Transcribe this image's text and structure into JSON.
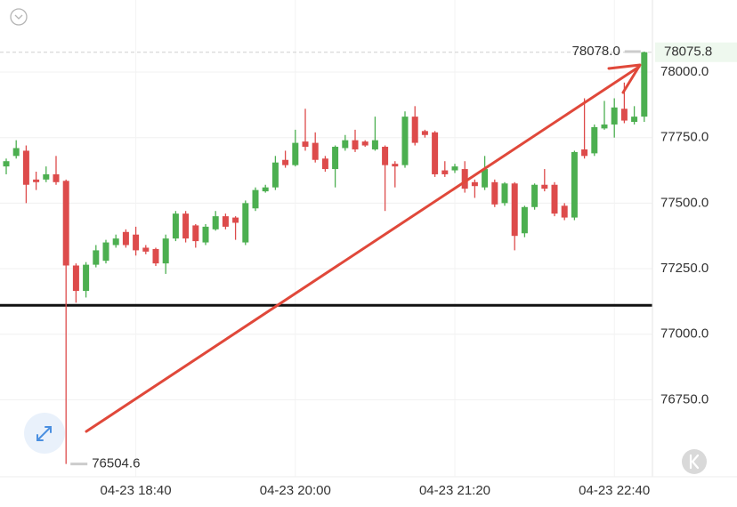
{
  "chart_data": {
    "type": "candlestick",
    "categories": [
      null,
      null,
      null,
      null,
      null,
      null,
      null,
      null,
      null,
      null,
      null,
      null,
      null,
      "04-23 18:40",
      null,
      null,
      null,
      null,
      null,
      null,
      null,
      null,
      null,
      null,
      null,
      null,
      null,
      null,
      null,
      "04-23 20:00",
      null,
      null,
      null,
      null,
      null,
      null,
      null,
      null,
      null,
      null,
      null,
      null,
      null,
      null,
      null,
      "04-23 21:20",
      null,
      null,
      null,
      null,
      null,
      null,
      null,
      null,
      null,
      null,
      null,
      null,
      null,
      null,
      null,
      "04-23 22:40",
      null,
      null,
      null
    ],
    "open": [
      77640,
      77680,
      77700,
      77590,
      77590,
      77610,
      77585,
      77262,
      77165,
      77265,
      77280,
      77340,
      77390,
      77380,
      77330,
      77325,
      77270,
      77365,
      77460,
      77415,
      77350,
      77400,
      77450,
      77445,
      77350,
      77480,
      77545,
      77560,
      77665,
      77645,
      77735,
      77730,
      77670,
      77630,
      77710,
      77740,
      77735,
      77705,
      77715,
      77650,
      77645,
      77830,
      77775,
      77770,
      77625,
      77625,
      77630,
      77580,
      77560,
      77580,
      77500,
      77575,
      77385,
      77485,
      77570,
      77570,
      77490,
      77445,
      77705,
      77690,
      77785,
      77800,
      77860,
      77810,
      77830
    ],
    "close": [
      77660,
      77710,
      77570,
      77580,
      77610,
      77580,
      77262,
      77165,
      77265,
      77320,
      77350,
      77365,
      77340,
      77320,
      77315,
      77270,
      77365,
      77460,
      77365,
      77355,
      77410,
      77450,
      77410,
      77425,
      77500,
      77550,
      77560,
      77655,
      77645,
      77730,
      77715,
      77665,
      77630,
      77715,
      77740,
      77705,
      77720,
      77740,
      77645,
      77640,
      77830,
      77730,
      77760,
      77610,
      77610,
      77640,
      77555,
      77565,
      77630,
      77495,
      77575,
      77375,
      77485,
      77570,
      77555,
      77460,
      77445,
      77695,
      77680,
      77790,
      77800,
      77865,
      77815,
      77830,
      78075.8
    ],
    "high": [
      77670,
      77740,
      77720,
      77620,
      77640,
      77680,
      77590,
      77270,
      77275,
      77340,
      77360,
      77380,
      77400,
      77410,
      77340,
      77330,
      77380,
      77470,
      77470,
      77420,
      77420,
      77470,
      77460,
      77450,
      77510,
      77560,
      77570,
      77680,
      77700,
      77780,
      77860,
      77770,
      77680,
      77720,
      77760,
      77780,
      77740,
      77830,
      77720,
      77660,
      77850,
      77870,
      77780,
      77775,
      77660,
      77650,
      77660,
      77590,
      77680,
      77590,
      77580,
      77580,
      77490,
      77575,
      77630,
      77580,
      77500,
      77700,
      77900,
      77800,
      77890,
      77900,
      77960,
      77870,
      78078
    ],
    "low": [
      77610,
      77670,
      77500,
      77550,
      77580,
      77570,
      76504.6,
      77120,
      77140,
      77255,
      77270,
      77330,
      77330,
      77300,
      77305,
      77260,
      77230,
      77355,
      77350,
      77330,
      77340,
      77395,
      77400,
      77360,
      77340,
      77470,
      77540,
      77550,
      77635,
      77640,
      77700,
      77655,
      77620,
      77560,
      77700,
      77695,
      77715,
      77700,
      77470,
      77560,
      77635,
      77720,
      77750,
      77600,
      77600,
      77615,
      77540,
      77520,
      77550,
      77485,
      77490,
      77320,
      77370,
      77475,
      77545,
      77450,
      77435,
      77435,
      77670,
      77680,
      77780,
      77750,
      77805,
      77800,
      77810
    ],
    "up_color": "#4caf50",
    "down_color": "#dd4b4b",
    "ylim": [
      76456,
      78275
    ],
    "yticks": [
      {
        "value": 76750,
        "label": "76750.0"
      },
      {
        "value": 77000,
        "label": "77000.0"
      },
      {
        "value": 77250,
        "label": "77250.0"
      },
      {
        "value": 77500,
        "label": "77500.0"
      },
      {
        "value": 77750,
        "label": "77750.0"
      },
      {
        "value": 78000,
        "label": "78000.0"
      }
    ],
    "grid": true,
    "last_price": 78075.8,
    "annotations": [
      {
        "value": 78078,
        "label": "78078.0"
      },
      {
        "value": 76504.6,
        "label": "76504.6"
      }
    ],
    "horizontal_line": 77110
  }
}
